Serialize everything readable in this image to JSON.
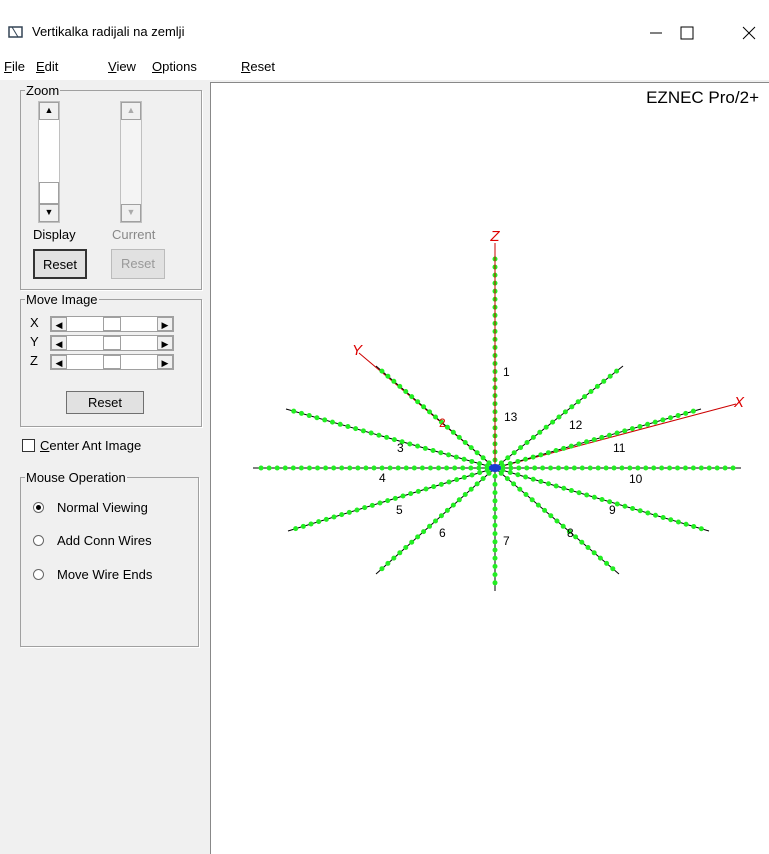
{
  "window": {
    "title": "Vertikalka radijali na zemlji"
  },
  "menu": [
    "File",
    "Edit",
    "View",
    "Options",
    "Reset"
  ],
  "zoom": {
    "title": "Zoom",
    "display": "Display",
    "current": "Current",
    "reset_display": "Reset",
    "reset_current": "Reset"
  },
  "move_image": {
    "title": "Move Image",
    "axes": [
      "X",
      "Y",
      "Z"
    ],
    "reset": "Reset"
  },
  "center_ant_image": "Center Ant Image",
  "mouse_operation": {
    "title": "Mouse Operation",
    "options": [
      "Normal Viewing",
      "Add Conn Wires",
      "Move Wire Ends"
    ]
  },
  "canvas": {
    "brand": "EZNEC Pro/2+",
    "axes": [
      "Z",
      "Y",
      "X"
    ],
    "wire_labels": [
      "1",
      "2",
      "3",
      "4",
      "5",
      "6",
      "7",
      "8",
      "9",
      "10",
      "11",
      "12",
      "13"
    ]
  }
}
